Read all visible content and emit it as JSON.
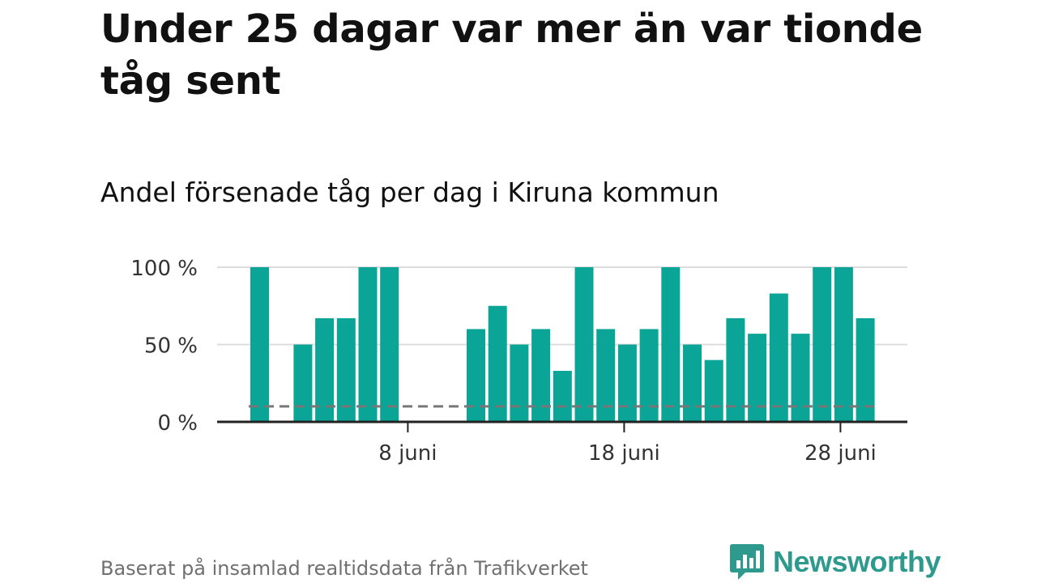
{
  "header": {
    "title": "Under 25 dagar var mer än var tionde tåg sent",
    "subtitle": "Andel försenade tåg per dag i Kiruna kommun"
  },
  "footer": {
    "source": "Baserat på insamlad realtidsdata från Trafikverket",
    "brand": "Newsworthy"
  },
  "colors": {
    "bar": "#0aa596",
    "reference_line": "#777777",
    "grid": "#dddddd",
    "axis": "#222222",
    "brand": "#2e9a8e"
  },
  "chart_data": {
    "type": "bar",
    "title": "Andel försenade tåg per dag i Kiruna kommun",
    "xlabel": "",
    "ylabel": "",
    "x_start_day": 1,
    "x": [
      "1 juni",
      "2 juni",
      "3 juni",
      "4 juni",
      "5 juni",
      "6 juni",
      "7 juni",
      "8 juni",
      "9 juni",
      "10 juni",
      "11 juni",
      "12 juni",
      "13 juni",
      "14 juni",
      "15 juni",
      "16 juni",
      "17 juni",
      "18 juni",
      "19 juni",
      "20 juni",
      "21 juni",
      "22 juni",
      "23 juni",
      "24 juni",
      "25 juni",
      "26 juni",
      "27 juni",
      "28 juni",
      "29 juni",
      "30 juni"
    ],
    "values": [
      100,
      null,
      50,
      67,
      67,
      100,
      100,
      null,
      null,
      null,
      60,
      75,
      50,
      60,
      33,
      100,
      60,
      50,
      60,
      100,
      50,
      40,
      67,
      57,
      83,
      57,
      100,
      100,
      67,
      null
    ],
    "ylim": [
      0,
      100
    ],
    "yticks": [
      0,
      50,
      100
    ],
    "ytick_labels": [
      "0 %",
      "50 %",
      "100 %"
    ],
    "xtick_days": [
      8,
      18,
      28
    ],
    "xtick_labels": [
      "8 juni",
      "18 juni",
      "28 juni"
    ],
    "reference_line": 10,
    "grid": true,
    "legend": "none"
  }
}
